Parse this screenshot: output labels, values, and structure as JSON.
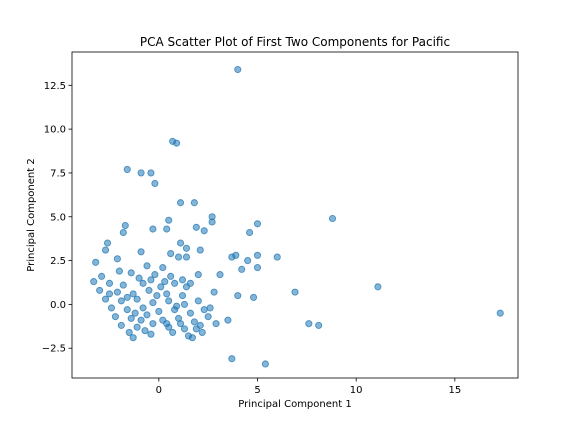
{
  "chart_data": {
    "type": "scatter",
    "title": "PCA Scatter Plot of First Two Components for Pacific",
    "xlabel": "Principal Component 1",
    "ylabel": "Principal Component 2",
    "xlim": [
      -4.4,
      18.2
    ],
    "ylim": [
      -4.2,
      14.4
    ],
    "xticks": [
      0,
      5,
      10,
      15
    ],
    "yticks": [
      -2.5,
      0.0,
      2.5,
      5.0,
      7.5,
      10.0,
      12.5
    ],
    "xtick_labels": [
      "0",
      "5",
      "10",
      "15"
    ],
    "ytick_labels": [
      "−2.5",
      "0.0",
      "2.5",
      "5.0",
      "7.5",
      "10.0",
      "12.5"
    ],
    "grid": false,
    "color": "#1f77b4",
    "points": [
      {
        "x": 4.0,
        "y": 13.4
      },
      {
        "x": 0.7,
        "y": 9.3
      },
      {
        "x": 0.9,
        "y": 9.2
      },
      {
        "x": -1.6,
        "y": 7.7
      },
      {
        "x": -0.9,
        "y": 7.5
      },
      {
        "x": -0.4,
        "y": 7.5
      },
      {
        "x": -0.2,
        "y": 6.9
      },
      {
        "x": 1.1,
        "y": 5.8
      },
      {
        "x": 1.8,
        "y": 5.8
      },
      {
        "x": 2.7,
        "y": 5.0
      },
      {
        "x": 2.7,
        "y": 4.7
      },
      {
        "x": 5.0,
        "y": 4.6
      },
      {
        "x": 8.8,
        "y": 4.9
      },
      {
        "x": 0.5,
        "y": 4.8
      },
      {
        "x": -1.7,
        "y": 4.5
      },
      {
        "x": -1.8,
        "y": 4.1
      },
      {
        "x": -0.3,
        "y": 4.3
      },
      {
        "x": 0.4,
        "y": 4.3
      },
      {
        "x": 1.9,
        "y": 4.4
      },
      {
        "x": 2.3,
        "y": 4.2
      },
      {
        "x": 4.6,
        "y": 4.1
      },
      {
        "x": -2.6,
        "y": 3.5
      },
      {
        "x": 1.1,
        "y": 3.5
      },
      {
        "x": -0.9,
        "y": 3.0
      },
      {
        "x": -2.7,
        "y": 3.1
      },
      {
        "x": 1.4,
        "y": 3.2
      },
      {
        "x": 2.1,
        "y": 3.1
      },
      {
        "x": 0.6,
        "y": 2.9
      },
      {
        "x": 5.0,
        "y": 2.8
      },
      {
        "x": 3.7,
        "y": 2.7
      },
      {
        "x": 3.9,
        "y": 2.8
      },
      {
        "x": 6.0,
        "y": 2.7
      },
      {
        "x": -2.1,
        "y": 2.6
      },
      {
        "x": 4.5,
        "y": 2.5
      },
      {
        "x": -3.2,
        "y": 2.4
      },
      {
        "x": 1.4,
        "y": 2.7
      },
      {
        "x": -0.6,
        "y": 2.2
      },
      {
        "x": 0.2,
        "y": 2.1
      },
      {
        "x": 1.0,
        "y": 2.7
      },
      {
        "x": 4.2,
        "y": 2.0
      },
      {
        "x": 5.0,
        "y": 2.1
      },
      {
        "x": 3.1,
        "y": 1.7
      },
      {
        "x": 2.8,
        "y": 0.7
      },
      {
        "x": 6.9,
        "y": 0.7
      },
      {
        "x": 4.0,
        "y": 0.5
      },
      {
        "x": 4.8,
        "y": 0.4
      },
      {
        "x": 11.1,
        "y": 1.0
      },
      {
        "x": 7.6,
        "y": -1.1
      },
      {
        "x": 8.1,
        "y": -1.2
      },
      {
        "x": 17.3,
        "y": -0.5
      },
      {
        "x": 3.7,
        "y": -3.1
      },
      {
        "x": 5.4,
        "y": -3.4
      },
      {
        "x": 2.0,
        "y": 1.7
      },
      {
        "x": -1.4,
        "y": 1.8
      },
      {
        "x": -2.9,
        "y": 1.6
      },
      {
        "x": -1.0,
        "y": 1.5
      },
      {
        "x": -0.2,
        "y": 1.7
      },
      {
        "x": 0.6,
        "y": 1.6
      },
      {
        "x": 1.2,
        "y": 1.4
      },
      {
        "x": -3.3,
        "y": 1.3
      },
      {
        "x": -2.5,
        "y": 1.2
      },
      {
        "x": -1.8,
        "y": 1.1
      },
      {
        "x": -0.8,
        "y": 1.2
      },
      {
        "x": 0.1,
        "y": 1.0
      },
      {
        "x": 0.8,
        "y": 1.2
      },
      {
        "x": 1.4,
        "y": 1.0
      },
      {
        "x": -3.0,
        "y": 0.8
      },
      {
        "x": -2.1,
        "y": 0.7
      },
      {
        "x": -1.3,
        "y": 0.6
      },
      {
        "x": -0.5,
        "y": 0.8
      },
      {
        "x": 0.4,
        "y": 0.6
      },
      {
        "x": 1.2,
        "y": 0.5
      },
      {
        "x": -2.7,
        "y": 0.3
      },
      {
        "x": -1.9,
        "y": 0.2
      },
      {
        "x": -1.1,
        "y": 0.3
      },
      {
        "x": -0.3,
        "y": 0.1
      },
      {
        "x": 0.5,
        "y": 0.2
      },
      {
        "x": 1.3,
        "y": 0.0
      },
      {
        "x": 2.0,
        "y": 0.2
      },
      {
        "x": -2.4,
        "y": -0.2
      },
      {
        "x": -1.6,
        "y": -0.3
      },
      {
        "x": -0.8,
        "y": -0.2
      },
      {
        "x": 0.0,
        "y": -0.4
      },
      {
        "x": 0.8,
        "y": -0.3
      },
      {
        "x": 1.6,
        "y": -0.5
      },
      {
        "x": 2.3,
        "y": -0.3
      },
      {
        "x": -2.2,
        "y": -0.7
      },
      {
        "x": -1.4,
        "y": -0.8
      },
      {
        "x": -0.6,
        "y": -0.6
      },
      {
        "x": 0.2,
        "y": -0.9
      },
      {
        "x": 1.0,
        "y": -0.8
      },
      {
        "x": 1.8,
        "y": -1.0
      },
      {
        "x": 2.5,
        "y": -0.7
      },
      {
        "x": -1.9,
        "y": -1.2
      },
      {
        "x": -1.1,
        "y": -1.3
      },
      {
        "x": -0.3,
        "y": -1.1
      },
      {
        "x": 0.5,
        "y": -1.3
      },
      {
        "x": 1.3,
        "y": -1.4
      },
      {
        "x": 2.1,
        "y": -1.2
      },
      {
        "x": -1.5,
        "y": -1.6
      },
      {
        "x": -0.7,
        "y": -1.5
      },
      {
        "x": 0.7,
        "y": -1.6
      },
      {
        "x": 1.5,
        "y": -1.8
      },
      {
        "x": 2.2,
        "y": -1.6
      },
      {
        "x": -1.3,
        "y": -1.9
      },
      {
        "x": 1.7,
        "y": -1.9
      },
      {
        "x": 2.9,
        "y": -1.1
      },
      {
        "x": 3.5,
        "y": -0.9
      },
      {
        "x": -2.0,
        "y": 1.9
      },
      {
        "x": -0.4,
        "y": 1.4
      },
      {
        "x": 0.3,
        "y": 1.3
      },
      {
        "x": 1.6,
        "y": 1.2
      },
      {
        "x": -1.6,
        "y": 0.4
      },
      {
        "x": -0.1,
        "y": 0.5
      },
      {
        "x": 0.9,
        "y": -0.1
      },
      {
        "x": -0.9,
        "y": -0.9
      },
      {
        "x": 0.4,
        "y": -1.1
      },
      {
        "x": 1.1,
        "y": -1.1
      },
      {
        "x": 1.9,
        "y": -1.4
      },
      {
        "x": -2.5,
        "y": 0.6
      },
      {
        "x": -1.2,
        "y": -0.5
      },
      {
        "x": -0.4,
        "y": -1.7
      },
      {
        "x": 2.6,
        "y": -0.2
      }
    ]
  }
}
